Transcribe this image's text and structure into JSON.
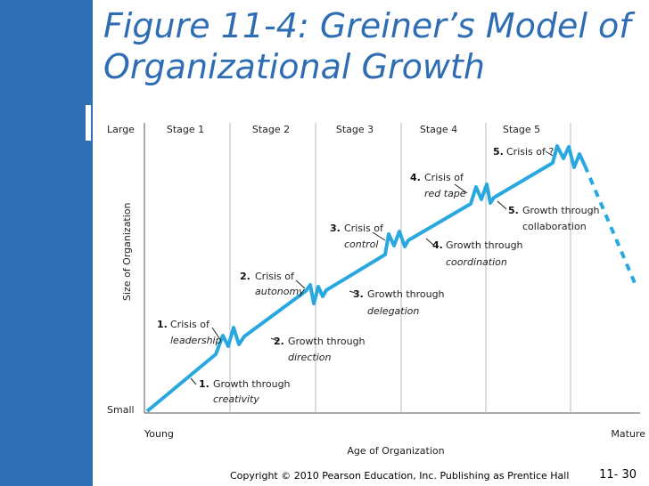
{
  "title_line1": "Figure 11-4: Greiner’s Model of",
  "title_line2": "Organizational Growth",
  "diagram": {
    "y_top_label": "Large",
    "y_bottom_label": "Small",
    "y_axis_title": "Size of Organization",
    "x_left_label": "Young",
    "x_right_label": "Mature",
    "x_axis_title": "Age of Organization",
    "stages": [
      "Stage 1",
      "Stage 2",
      "Stage 3",
      "Stage 4",
      "Stage 5"
    ],
    "crises": [
      {
        "num": "1.",
        "line1": "Crisis of",
        "line2": "leadership"
      },
      {
        "num": "2.",
        "line1": "Crisis of",
        "line2": "autonomy"
      },
      {
        "num": "3.",
        "line1": "Crisis of",
        "line2": "control"
      },
      {
        "num": "4.",
        "line1": "Crisis of",
        "line2": "red tape"
      },
      {
        "num": "5.",
        "line1": "Crisis of ?",
        "line2": ""
      }
    ],
    "growths": [
      {
        "num": "1.",
        "line1": "Growth through",
        "line2": "creativity"
      },
      {
        "num": "2.",
        "line1": "Growth through",
        "line2": "direction"
      },
      {
        "num": "3.",
        "line1": "Growth through",
        "line2": "delegation"
      },
      {
        "num": "4.",
        "line1": "Growth through",
        "line2": "coordination"
      },
      {
        "num": "5.",
        "line1": "Growth through",
        "line2": "collaboration"
      }
    ],
    "line_color": "#29a8e0"
  },
  "footer": {
    "copyright": "Copyright © 2010 Pearson Education, Inc. Publishing as Prentice Hall",
    "page": "11- 30"
  }
}
